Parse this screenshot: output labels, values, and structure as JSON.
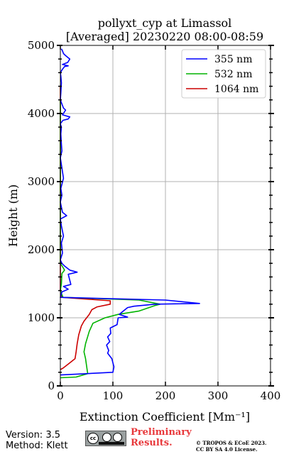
{
  "chart_data": {
    "type": "line",
    "title": "pollyxt_cyp at Limassol",
    "subtitle": "[Averaged] 20230220 08:00-08:59",
    "xlabel": "Extinction Coefficient [Mm⁻¹]",
    "ylabel": "Height (m)",
    "xlim": [
      0,
      400
    ],
    "ylim": [
      0,
      5000
    ],
    "xticks": [
      0,
      100,
      200,
      300,
      400
    ],
    "yticks": [
      0,
      1000,
      2000,
      3000,
      4000,
      5000
    ],
    "grid": true,
    "legend_position": "top-right",
    "series": [
      {
        "name": "355 nm",
        "color": "#0000ff",
        "x": [
          0,
          100,
          102,
          98,
          90,
          92,
          88,
          94,
          90,
          96,
          95,
          108,
          110,
          128,
          112,
          120,
          128,
          140,
          180,
          265,
          200,
          0,
          3,
          15,
          6,
          20,
          15,
          32,
          18,
          8,
          3,
          0,
          4,
          2,
          6,
          2,
          0,
          12,
          4,
          0,
          3,
          1,
          6,
          3,
          0,
          3,
          2,
          1,
          2,
          0,
          5,
          15,
          18,
          4,
          10,
          6,
          0,
          1,
          2,
          1,
          0,
          4,
          8,
          15,
          4,
          14,
          18,
          10,
          6,
          4,
          2
        ],
        "y": [
          160,
          200,
          280,
          400,
          480,
          520,
          600,
          650,
          720,
          770,
          850,
          900,
          1000,
          1010,
          1050,
          1100,
          1150,
          1170,
          1200,
          1210,
          1260,
          1300,
          1380,
          1420,
          1460,
          1490,
          1640,
          1670,
          1700,
          1760,
          1800,
          1850,
          1950,
          2100,
          2200,
          2350,
          2450,
          2500,
          2550,
          2700,
          2800,
          2900,
          3050,
          3200,
          3350,
          3450,
          3550,
          3700,
          3800,
          3850,
          3900,
          3920,
          3950,
          3980,
          4050,
          4080,
          4200,
          4300,
          4450,
          4550,
          4600,
          4650,
          4690,
          4700,
          4720,
          4750,
          4800,
          4850,
          4880,
          4920,
          4950
        ]
      },
      {
        "name": "532 nm",
        "color": "#00b400",
        "x": [
          0,
          30,
          52,
          48,
          45,
          48,
          55,
          62,
          85,
          110,
          150,
          180,
          190,
          150,
          5,
          0,
          2,
          3,
          8,
          5,
          0,
          0,
          0
        ],
        "y": [
          120,
          130,
          180,
          400,
          500,
          620,
          800,
          920,
          1000,
          1050,
          1100,
          1180,
          1200,
          1260,
          1300,
          1400,
          1500,
          1650,
          1700,
          1740,
          1800,
          2500,
          4200
        ]
      },
      {
        "name": "1064 nm",
        "color": "#cc0000",
        "x": [
          0,
          5,
          15,
          28,
          30,
          32,
          35,
          40,
          45,
          50,
          55,
          60,
          70,
          95,
          95,
          3,
          0,
          0
        ],
        "y": [
          240,
          260,
          320,
          400,
          500,
          620,
          750,
          880,
          950,
          1000,
          1050,
          1120,
          1160,
          1200,
          1250,
          1300,
          1400,
          4400
        ]
      }
    ]
  },
  "footer": {
    "version": "Version: 3.5",
    "method": "Method: Klett",
    "badge": "cc by sa",
    "preliminary_line1": "Preliminary",
    "preliminary_line2": "Results.",
    "copyright_line1": "© TROPOS & ECoE 2023.",
    "copyright_line2": "CC BY SA 4.0 License."
  }
}
